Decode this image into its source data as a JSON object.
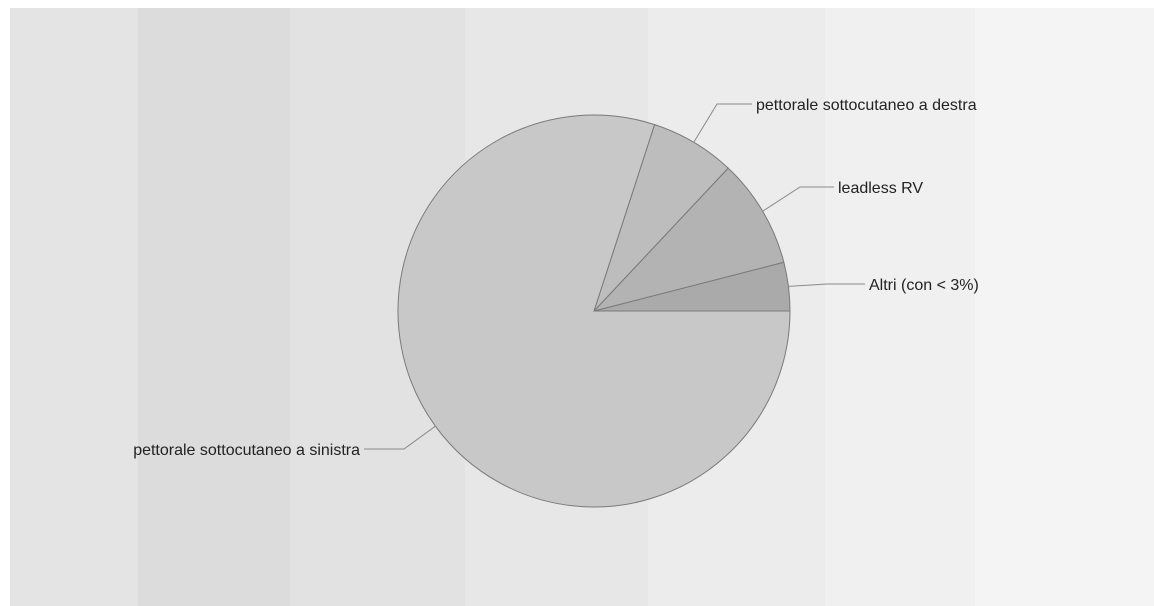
{
  "chart_data": {
    "type": "pie",
    "title": "",
    "start": "3 o'clock",
    "direction": "counterclockwise",
    "slices": [
      {
        "label": "Altri (con < 3%)",
        "value": 4,
        "color": "#aaaaaa"
      },
      {
        "label": "leadless RV",
        "value": 9,
        "color": "#b3b3b3"
      },
      {
        "label": "pettorale sottocutaneo a destra",
        "value": 7,
        "color": "#bdbdbd"
      },
      {
        "label": "pettorale sottocutaneo a sinistra",
        "value": 80,
        "color": "#c8c8c8"
      }
    ],
    "legend": "none"
  },
  "background": {
    "band_colors": [
      "#e4e4e4",
      "#dcdcdc",
      "#e2e2e2",
      "#e7e7e7",
      "#ececec",
      "#f0f0f0",
      "#f4f4f4",
      "#f8f8f8"
    ]
  }
}
